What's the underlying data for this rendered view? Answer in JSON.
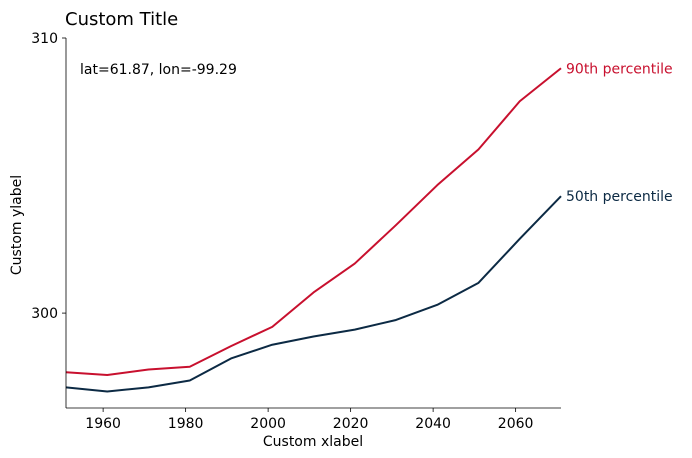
{
  "chart_data": {
    "type": "line",
    "title": "Custom Title",
    "xlabel": "Custom xlabel",
    "ylabel": "Custom ylabel",
    "annotation": "lat=61.87, lon=-99.29",
    "xlim": [
      1951,
      2071
    ],
    "ylim": [
      296.55,
      310.0
    ],
    "x_ticks": [
      1960,
      1980,
      2000,
      2020,
      2040,
      2060
    ],
    "y_ticks": [
      300,
      310
    ],
    "grid": false,
    "x": [
      1951,
      1961,
      1971,
      1981,
      1991,
      2001,
      2011,
      2021,
      2031,
      2041,
      2051,
      2061,
      2071
    ],
    "series": [
      {
        "name": "90th percentile",
        "color": "#c8102e",
        "values": [
          297.85,
          297.75,
          297.95,
          298.05,
          298.8,
          299.5,
          300.75,
          301.8,
          303.2,
          304.65,
          305.95,
          307.7,
          308.9
        ]
      },
      {
        "name": "50th percentile",
        "color": "#0c2a44",
        "values": [
          297.3,
          297.15,
          297.3,
          297.55,
          298.35,
          298.85,
          299.15,
          299.4,
          299.75,
          300.3,
          301.1,
          302.7,
          304.25
        ]
      }
    ]
  }
}
